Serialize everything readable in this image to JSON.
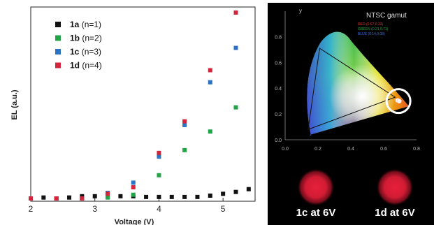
{
  "chart_data": [
    {
      "type": "scatter",
      "title": "",
      "xlabel": "Voltage (V)",
      "ylabel": "EL (a.u.)",
      "xlim": [
        2,
        5.5
      ],
      "ylim": [
        0,
        1
      ],
      "x_ticks": [
        "2",
        "3",
        "4",
        "5"
      ],
      "y_ticks": [],
      "grid": false,
      "legend_position": "top-left",
      "series": [
        {
          "name": "1a",
          "label_suffix": "(n=1)",
          "color": "#111111",
          "points": [
            [
              2.0,
              0.0
            ],
            [
              2.2,
              0.005
            ],
            [
              2.4,
              0.0
            ],
            [
              2.6,
              0.005
            ],
            [
              2.8,
              0.012
            ],
            [
              3.0,
              0.012
            ],
            [
              3.2,
              0.012
            ],
            [
              3.4,
              0.012
            ],
            [
              3.6,
              0.012
            ],
            [
              3.8,
              0.008
            ],
            [
              4.0,
              0.008
            ],
            [
              4.2,
              0.008
            ],
            [
              4.4,
              0.008
            ],
            [
              4.6,
              0.008
            ],
            [
              4.8,
              0.015
            ],
            [
              5.0,
              0.025
            ],
            [
              5.2,
              0.035
            ],
            [
              5.4,
              0.05
            ]
          ]
        },
        {
          "name": "1b",
          "label_suffix": "(n=2)",
          "color": "#22a546",
          "points": [
            [
              2.0,
              0.0
            ],
            [
              2.4,
              0.0
            ],
            [
              2.8,
              0.0
            ],
            [
              3.2,
              0.005
            ],
            [
              3.6,
              0.02
            ],
            [
              4.0,
              0.125
            ],
            [
              4.4,
              0.26
            ],
            [
              4.8,
              0.36
            ],
            [
              5.2,
              0.49
            ]
          ]
        },
        {
          "name": "1c",
          "label_suffix": "(n=3)",
          "color": "#2a72c4",
          "points": [
            [
              2.0,
              0.0
            ],
            [
              2.4,
              0.0
            ],
            [
              2.8,
              0.0
            ],
            [
              3.2,
              0.03
            ],
            [
              3.6,
              0.085
            ],
            [
              4.0,
              0.225
            ],
            [
              4.4,
              0.395
            ],
            [
              4.8,
              0.625
            ],
            [
              5.2,
              0.81
            ]
          ]
        },
        {
          "name": "1d",
          "label_suffix": "(n=4)",
          "color": "#d3263a",
          "points": [
            [
              2.0,
              0.0
            ],
            [
              2.4,
              0.0
            ],
            [
              2.8,
              0.0
            ],
            [
              3.2,
              0.025
            ],
            [
              3.6,
              0.06
            ],
            [
              4.0,
              0.245
            ],
            [
              4.4,
              0.415
            ],
            [
              4.8,
              0.69
            ],
            [
              5.2,
              1.0
            ]
          ]
        }
      ]
    },
    {
      "type": "scatter",
      "title": "NTSC gamut",
      "xlabel": "",
      "ylabel": "y",
      "xlim": [
        0,
        0.8
      ],
      "ylim": [
        0,
        0.9
      ],
      "x_ticks": [
        "0.0",
        "0.2",
        "0.4",
        "0.6",
        "0.8"
      ],
      "y_ticks": [
        "0.0",
        "0.2",
        "0.4",
        "0.6",
        "0.8"
      ],
      "legend_lines": [
        {
          "label": "RED",
          "value": "(0.67,0.33)",
          "color": "#d33636"
        },
        {
          "label": "GREEN",
          "value": "(0.21,0.71)",
          "color": "#2fa84a"
        },
        {
          "label": "BLUE",
          "value": "(0.14,0.08)",
          "color": "#3d6fd6"
        }
      ],
      "ntsc_triangle": [
        [
          0.67,
          0.33
        ],
        [
          0.21,
          0.71
        ],
        [
          0.14,
          0.08
        ]
      ],
      "measured_points": [
        [
          0.685,
          0.305
        ],
        [
          0.695,
          0.3
        ]
      ],
      "highlight_circle_center": [
        0.69,
        0.3
      ]
    }
  ],
  "photos": [
    {
      "caption": "1c at 6V",
      "glow_color": "#d81a32"
    },
    {
      "caption": "1d at 6V",
      "glow_color": "#e0202e"
    }
  ]
}
